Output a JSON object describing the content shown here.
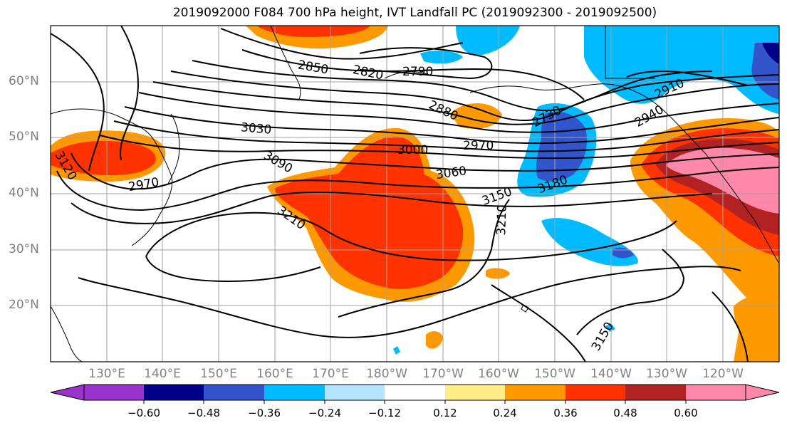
{
  "title": "2019092000 F084 700 hPa height, IVT Landfall PC (2019092300 - 2019092500)",
  "map": {
    "lat_labels": [
      "60°N",
      "50°N",
      "40°N",
      "30°N",
      "20°N"
    ],
    "lon_labels": [
      "130°E",
      "140°E",
      "150°E",
      "160°E",
      "170°E",
      "180°W",
      "170°W",
      "160°W",
      "150°W",
      "140°W",
      "130°W",
      "120°W"
    ],
    "contour_labels": [
      "2850",
      "2820",
      "2790",
      "2880",
      "2730",
      "2910",
      "2940",
      "3030",
      "3000",
      "2970",
      "3060",
      "3090",
      "3150",
      "3180",
      "3210",
      "3210",
      "3120",
      "2970",
      "3150"
    ]
  },
  "colorbar": {
    "ticks": [
      "−0.60",
      "−0.48",
      "−0.36",
      "−0.24",
      "−0.12",
      "0.12",
      "0.24",
      "0.36",
      "0.48",
      "0.60"
    ],
    "colors": [
      "#9933cc",
      "#000088",
      "#3355cc",
      "#00bbff",
      "#b3e5ff",
      "#ffffff",
      "#ffee88",
      "#ff9900",
      "#ff3300",
      "#b22222",
      "#ff88aa"
    ]
  }
}
